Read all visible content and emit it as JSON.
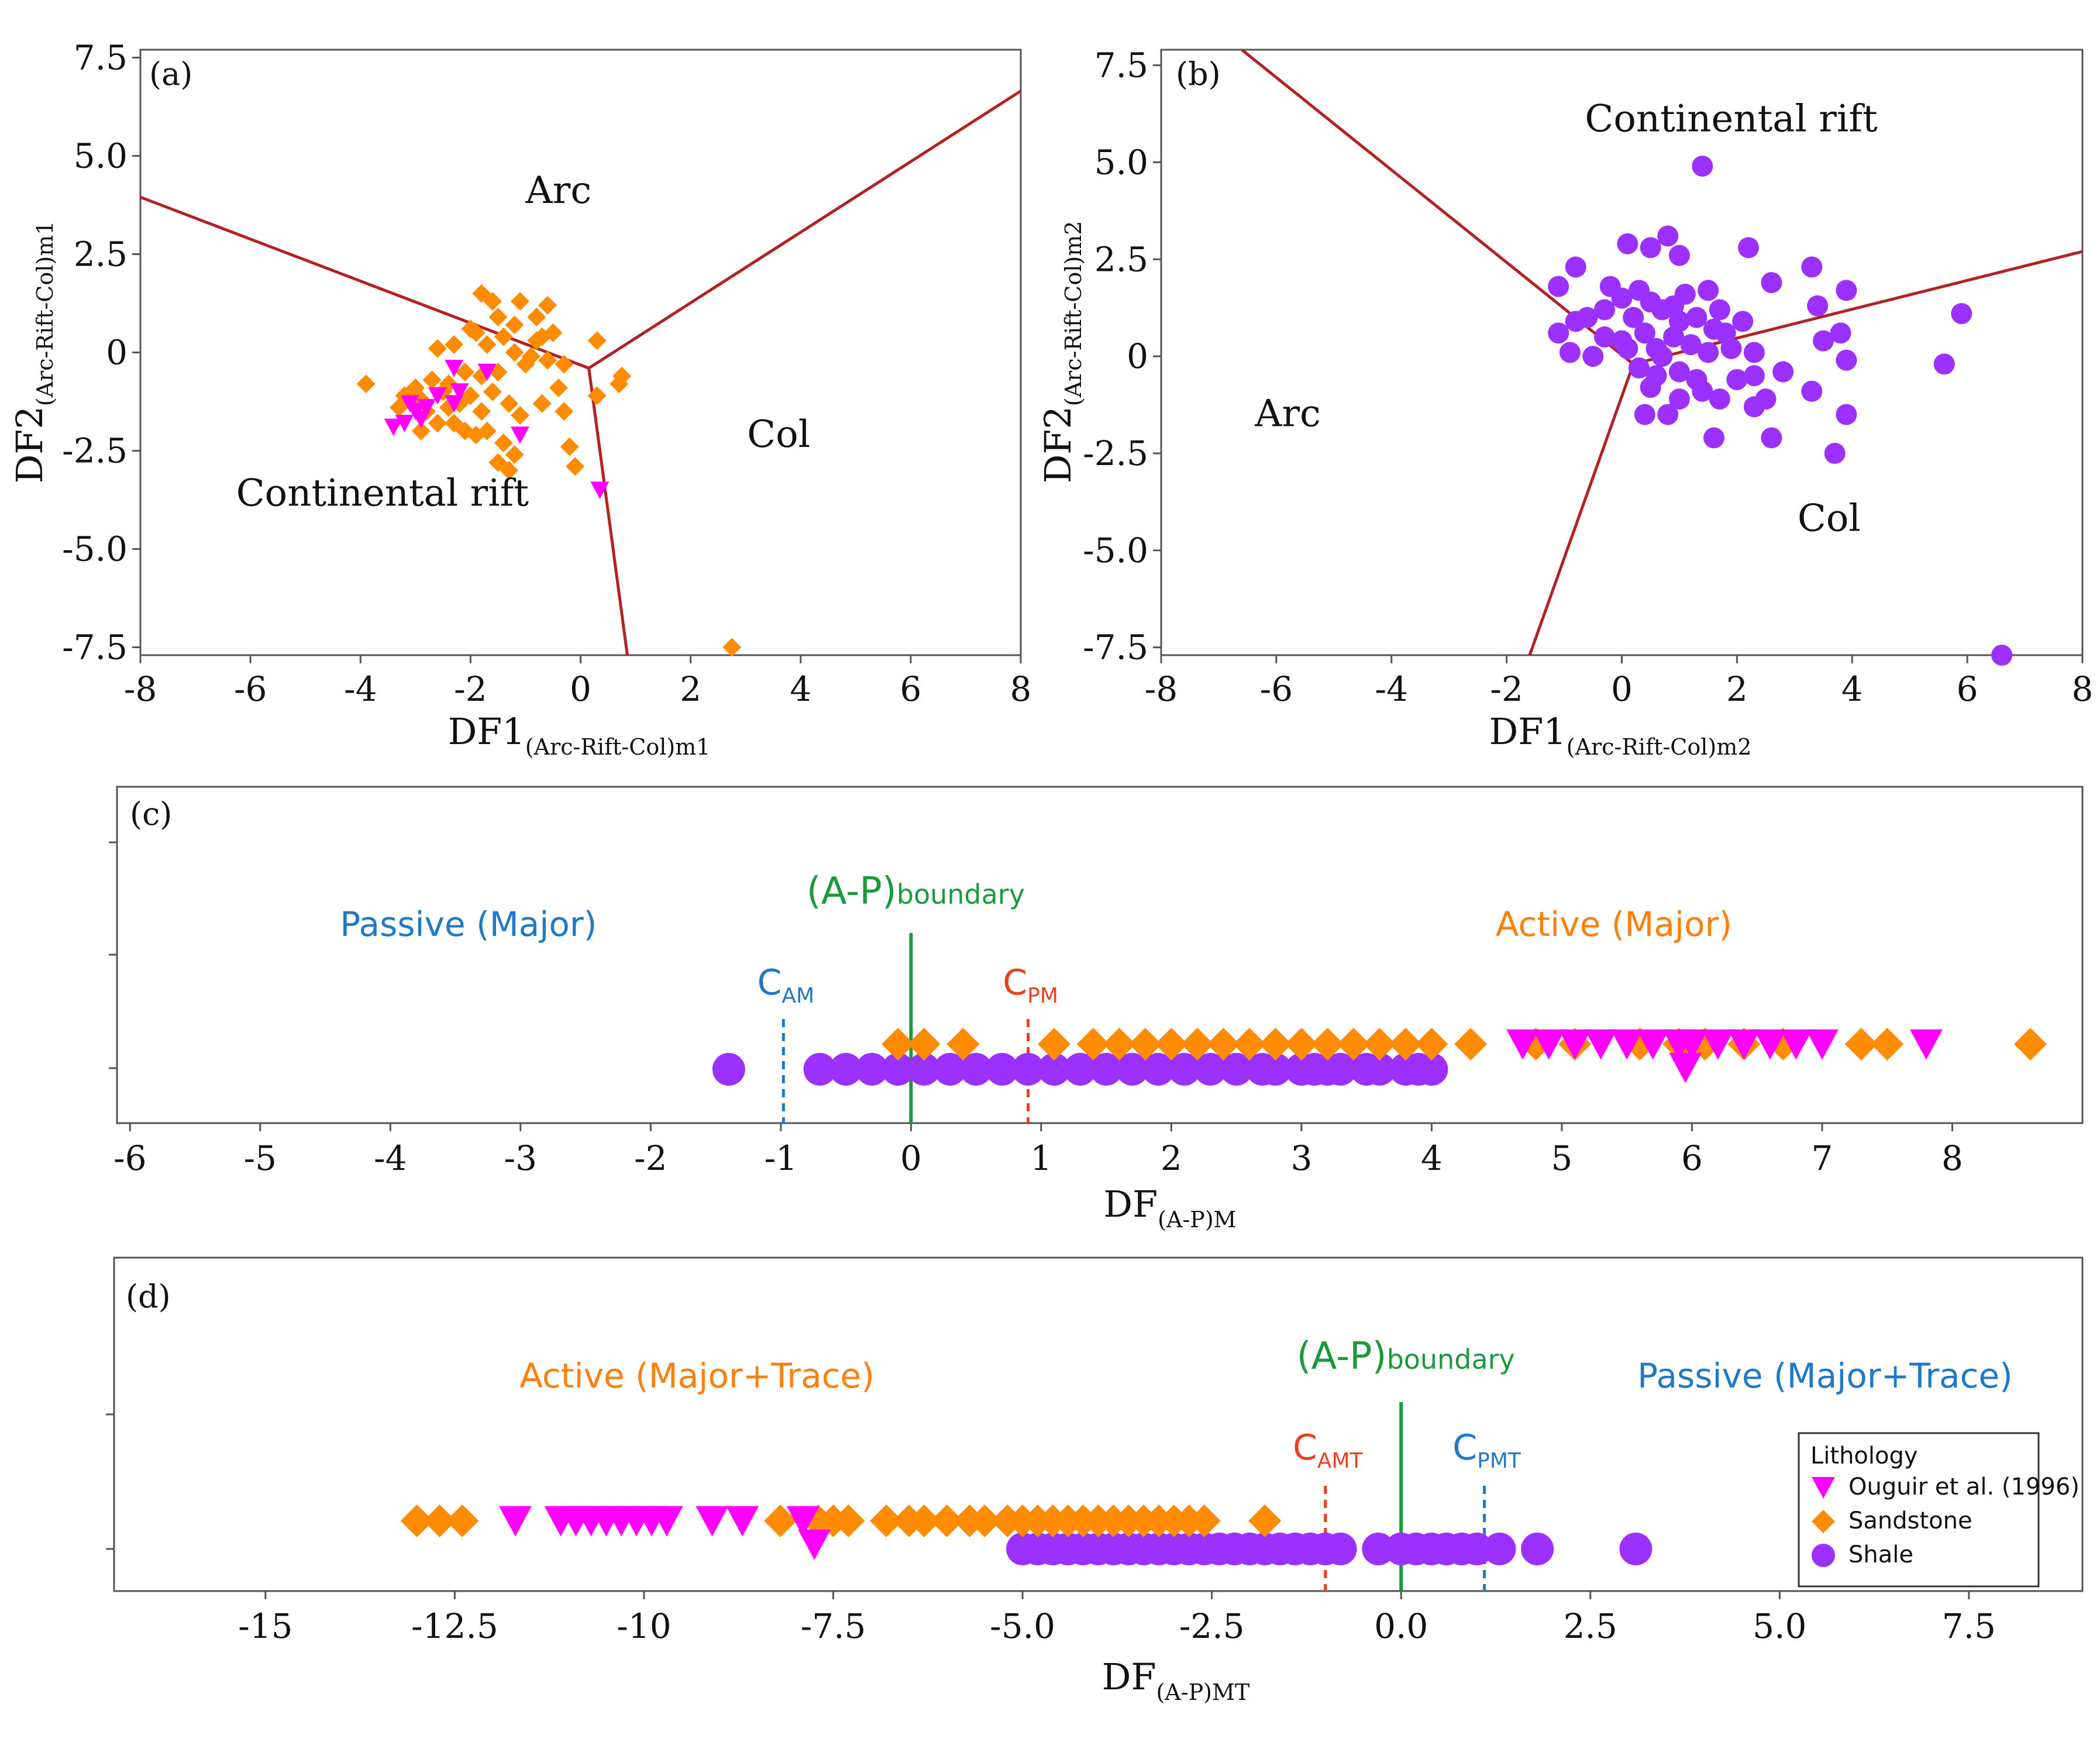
{
  "colors": {
    "boundary_line": "#b22222",
    "ouguir": "#ff00ff",
    "sandstone": "#ff8c00",
    "shale": "#9b30ff",
    "ap_boundary": "#1a9a3a",
    "passive_text": "#1f78c8",
    "active_text": "#ff7f0e",
    "c_active_text": "#e8401c"
  },
  "legend": {
    "title": "Lithology",
    "items": [
      {
        "label": "Ouguir et al. (1996)",
        "marker": "triangle-down",
        "color": "#ff00ff"
      },
      {
        "label": "Sandstone",
        "marker": "diamond",
        "color": "#ff8c00"
      },
      {
        "label": "Shale",
        "marker": "circle",
        "color": "#9b30ff"
      }
    ]
  },
  "chart_data": [
    {
      "panel": "(a)",
      "type": "scatter",
      "xlabel": {
        "main": "DF1",
        "sub": "(Arc-Rift-Col)m1"
      },
      "ylabel": {
        "main": "DF2",
        "sub": "(Arc-Rift-Col)m1"
      },
      "xlim": [
        -8,
        8
      ],
      "ylim": [
        -7.7,
        7.7
      ],
      "xticks": [
        "-8",
        "-6",
        "-4",
        "-2",
        "0",
        "2",
        "4",
        "6",
        "8"
      ],
      "yticks": [
        {
          "v": 7.5,
          "t": "7.5"
        },
        {
          "v": 5,
          "t": "5.0"
        },
        {
          "v": 2.5,
          "t": "2.5"
        },
        {
          "v": 0,
          "t": "0"
        },
        {
          "v": -2.5,
          "t": "-2.5"
        },
        {
          "v": -5,
          "t": "-5.0"
        },
        {
          "v": -7.5,
          "t": "-7.5"
        }
      ],
      "region_labels": [
        {
          "text": "Arc",
          "x": -0.4,
          "y": 3.8
        },
        {
          "text": "Col",
          "x": 3.6,
          "y": -2.4
        },
        {
          "text": "Continental rift",
          "x": -3.6,
          "y": -3.9
        }
      ],
      "boundaries": {
        "center": [
          0.15,
          -0.4
        ],
        "ends": [
          [
            -8,
            3.95
          ],
          [
            8,
            6.65
          ],
          [
            0.85,
            -7.7
          ]
        ]
      },
      "series": [
        {
          "name": "Sandstone",
          "marker": "diamond",
          "points": [
            [
              -1.8,
              1.5
            ],
            [
              -1.6,
              1.3
            ],
            [
              -1.1,
              1.3
            ],
            [
              -2.0,
              0.6
            ],
            [
              -1.5,
              0.9
            ],
            [
              -1.2,
              0.7
            ],
            [
              -0.8,
              0.9
            ],
            [
              -0.6,
              1.2
            ],
            [
              -0.7,
              0.4
            ],
            [
              -1.4,
              0.4
            ],
            [
              -1.7,
              0.2
            ],
            [
              -2.3,
              0.2
            ],
            [
              -2.6,
              0.1
            ],
            [
              -1.2,
              0.0
            ],
            [
              -0.9,
              -0.1
            ],
            [
              -0.6,
              -0.2
            ],
            [
              -0.3,
              -0.3
            ],
            [
              0.3,
              0.3
            ],
            [
              0.75,
              -0.6
            ],
            [
              0.7,
              -0.8
            ],
            [
              -1.0,
              -0.3
            ],
            [
              -1.5,
              -0.5
            ],
            [
              -1.8,
              -0.6
            ],
            [
              -2.1,
              -0.5
            ],
            [
              -2.4,
              -0.8
            ],
            [
              -2.7,
              -0.7
            ],
            [
              -3.0,
              -0.9
            ],
            [
              -3.2,
              -1.1
            ],
            [
              -2.9,
              -1.2
            ],
            [
              -2.5,
              -1.0
            ],
            [
              -2.2,
              -1.3
            ],
            [
              -2.0,
              -1.1
            ],
            [
              -1.6,
              -1.0
            ],
            [
              -1.3,
              -1.3
            ],
            [
              -1.1,
              -1.6
            ],
            [
              -0.7,
              -1.3
            ],
            [
              -0.3,
              -1.5
            ],
            [
              -2.8,
              -1.5
            ],
            [
              -2.6,
              -1.8
            ],
            [
              -2.3,
              -1.8
            ],
            [
              -2.1,
              -2.0
            ],
            [
              -1.9,
              -2.1
            ],
            [
              -1.7,
              -2.0
            ],
            [
              -1.4,
              -2.3
            ],
            [
              -1.2,
              -2.6
            ],
            [
              -1.3,
              -3.0
            ],
            [
              -1.5,
              -2.8
            ],
            [
              -0.2,
              -2.4
            ],
            [
              -0.1,
              -2.9
            ],
            [
              -3.9,
              -0.8
            ],
            [
              -3.3,
              -1.4
            ],
            [
              -2.9,
              -2.0
            ],
            [
              -0.4,
              -0.9
            ],
            [
              0.3,
              -1.1
            ],
            [
              2.75,
              -7.5
            ],
            [
              -1.9,
              0.5
            ],
            [
              -0.8,
              0.3
            ],
            [
              -0.5,
              0.5
            ],
            [
              -2.4,
              -1.4
            ],
            [
              -1.8,
              -1.5
            ]
          ]
        },
        {
          "name": "Ouguir et al. (1996)",
          "marker": "triangle",
          "points": [
            [
              -3.4,
              -1.9
            ],
            [
              -3.2,
              -1.8
            ],
            [
              -3.0,
              -1.5
            ],
            [
              -3.1,
              -1.3
            ],
            [
              -2.8,
              -1.4
            ],
            [
              -2.9,
              -1.7
            ],
            [
              -2.6,
              -1.1
            ],
            [
              -2.3,
              -1.3
            ],
            [
              -2.2,
              -1.0
            ],
            [
              -1.7,
              -0.5
            ],
            [
              -2.3,
              -0.4
            ],
            [
              -1.1,
              -2.1
            ],
            [
              0.35,
              -3.5
            ]
          ]
        }
      ]
    },
    {
      "panel": "(b)",
      "type": "scatter",
      "xlabel": {
        "main": "DF1",
        "sub": "(Arc-Rift-Col)m2"
      },
      "ylabel": {
        "main": "DF2",
        "sub": "(Arc-Rift-Col)m2"
      },
      "xlim": [
        -8,
        8
      ],
      "ylim": [
        -7.7,
        7.9
      ],
      "xticks": [
        "-8",
        "-6",
        "-4",
        "-2",
        "0",
        "2",
        "4",
        "6",
        "8"
      ],
      "yticks": [
        {
          "v": 7.5,
          "t": "7.5"
        },
        {
          "v": 5,
          "t": "5.0"
        },
        {
          "v": 2.5,
          "t": "2.5"
        },
        {
          "v": 0,
          "t": "0"
        },
        {
          "v": -2.5,
          "t": "-2.5"
        },
        {
          "v": -5,
          "t": "-5.0"
        },
        {
          "v": -7.5,
          "t": "-7.5"
        }
      ],
      "region_labels": [
        {
          "text": "Continental rift",
          "x": 1.9,
          "y": 5.8
        },
        {
          "text": "Arc",
          "x": -5.8,
          "y": -1.8
        },
        {
          "text": "Col",
          "x": 3.6,
          "y": -4.5
        }
      ],
      "boundaries": {
        "center": [
          0.2,
          -0.2
        ],
        "ends": [
          [
            -6.6,
            7.9
          ],
          [
            8,
            2.7
          ],
          [
            -1.6,
            -7.7
          ]
        ]
      },
      "series": [
        {
          "name": "Shale",
          "marker": "circle",
          "points": [
            [
              1.4,
              4.9
            ],
            [
              2.2,
              2.8
            ],
            [
              3.3,
              2.3
            ],
            [
              0.1,
              2.9
            ],
            [
              0.5,
              2.8
            ],
            [
              0.8,
              3.1
            ],
            [
              1.0,
              2.6
            ],
            [
              -0.8,
              2.3
            ],
            [
              -1.1,
              1.8
            ],
            [
              -0.2,
              1.8
            ],
            [
              0.3,
              1.7
            ],
            [
              1.1,
              1.6
            ],
            [
              1.5,
              1.7
            ],
            [
              2.6,
              1.9
            ],
            [
              3.4,
              1.3
            ],
            [
              3.9,
              1.7
            ],
            [
              5.9,
              1.1
            ],
            [
              3.8,
              0.6
            ],
            [
              3.5,
              0.4
            ],
            [
              3.9,
              -0.1
            ],
            [
              5.6,
              -0.2
            ],
            [
              3.3,
              -0.9
            ],
            [
              2.8,
              -0.4
            ],
            [
              2.3,
              -0.5
            ],
            [
              2.0,
              -0.6
            ],
            [
              2.5,
              -1.1
            ],
            [
              2.3,
              -1.3
            ],
            [
              1.7,
              -1.1
            ],
            [
              1.4,
              -0.9
            ],
            [
              1.0,
              -1.1
            ],
            [
              0.5,
              -0.8
            ],
            [
              0.8,
              -1.5
            ],
            [
              0.4,
              -1.5
            ],
            [
              1.6,
              -2.1
            ],
            [
              2.6,
              -2.1
            ],
            [
              3.9,
              -1.5
            ],
            [
              3.7,
              -2.5
            ],
            [
              6.6,
              -7.7
            ],
            [
              -1.1,
              0.6
            ],
            [
              -0.9,
              0.1
            ],
            [
              -0.5,
              0.0
            ],
            [
              0.0,
              0.4
            ],
            [
              0.4,
              0.6
            ],
            [
              0.6,
              0.2
            ],
            [
              0.9,
              0.5
            ],
            [
              1.2,
              0.3
            ],
            [
              1.5,
              0.1
            ],
            [
              1.8,
              0.6
            ],
            [
              2.1,
              0.9
            ],
            [
              1.3,
              1.0
            ],
            [
              0.7,
              1.2
            ],
            [
              0.2,
              1.0
            ],
            [
              -0.3,
              1.2
            ],
            [
              -0.6,
              1.0
            ],
            [
              -0.8,
              0.9
            ],
            [
              0.0,
              1.5
            ],
            [
              0.5,
              1.4
            ],
            [
              0.9,
              1.3
            ],
            [
              1.7,
              1.2
            ],
            [
              1.9,
              0.2
            ],
            [
              0.3,
              -0.3
            ],
            [
              1.0,
              -0.4
            ],
            [
              1.3,
              -0.6
            ],
            [
              0.6,
              -0.5
            ],
            [
              -0.3,
              0.5
            ],
            [
              0.1,
              0.2
            ],
            [
              1.0,
              0.9
            ],
            [
              2.3,
              0.1
            ],
            [
              1.6,
              0.7
            ],
            [
              0.7,
              0.0
            ]
          ]
        }
      ]
    },
    {
      "panel": "(c)",
      "type": "scatter",
      "xlabel": {
        "main": "DF",
        "sub": "(A-P)M"
      },
      "xlim": [
        -6.1,
        9.0
      ],
      "xticks": [
        "-6",
        "-5",
        "-4",
        "-3",
        "-2",
        "-1",
        "0",
        "1",
        "2",
        "3",
        "4",
        "5",
        "6",
        "7",
        "8"
      ],
      "boundary": {
        "label_main": "(A-P)",
        "label_sub": "boundary",
        "x": 0
      },
      "cutoffs": [
        {
          "main": "C",
          "sub": "AM",
          "x": -0.98,
          "color": "#1f78c8"
        },
        {
          "main": "C",
          "sub": "PM",
          "x": 0.9,
          "color": "#e8401c"
        }
      ],
      "zone_labels": [
        {
          "text": "Passive (Major)",
          "x": -3.4,
          "color": "#1f78c8"
        },
        {
          "text": "Active (Major)",
          "x": 5.4,
          "color": "#ff7f0e"
        }
      ],
      "series": [
        {
          "name": "Shale",
          "marker": "circle",
          "row": 0,
          "x": [
            -1.4,
            -0.7,
            -0.5,
            -0.3,
            -0.1,
            0.1,
            0.3,
            0.5,
            0.7,
            0.9,
            1.1,
            1.3,
            1.5,
            1.7,
            1.9,
            2.1,
            2.3,
            2.5,
            2.7,
            2.8,
            3.0,
            3.1,
            3.2,
            3.3,
            3.5,
            3.6,
            3.8,
            3.9,
            4.0
          ]
        },
        {
          "name": "Sandstone",
          "marker": "diamond",
          "row": 1,
          "x": [
            -0.1,
            0.1,
            0.4,
            1.1,
            1.4,
            1.6,
            1.8,
            2.0,
            2.2,
            2.4,
            2.6,
            2.8,
            3.0,
            3.2,
            3.4,
            3.6,
            3.8,
            4.0,
            4.3,
            4.8,
            5.1,
            5.6,
            5.9,
            6.1,
            6.4,
            6.7,
            7.3,
            7.5,
            8.6
          ]
        },
        {
          "name": "Ouguir et al. (1996)",
          "marker": "triangle",
          "row": 1,
          "x": [
            4.7,
            4.9,
            5.1,
            5.3,
            5.5,
            5.7,
            5.9,
            6.0,
            6.2,
            6.4,
            6.6,
            6.8,
            7.0,
            7.8,
            5.95
          ]
        }
      ]
    },
    {
      "panel": "(d)",
      "type": "scatter",
      "xlabel": {
        "main": "DF",
        "sub": "(A-P)MT"
      },
      "xlim": [
        -17.0,
        9.0
      ],
      "xticks": [
        {
          "v": -15,
          "t": "-15"
        },
        {
          "v": -12.5,
          "t": "-12.5"
        },
        {
          "v": -10,
          "t": "-10"
        },
        {
          "v": -7.5,
          "t": "-7.5"
        },
        {
          "v": -5,
          "t": "-5.0"
        },
        {
          "v": -2.5,
          "t": "-2.5"
        },
        {
          "v": 0,
          "t": "0.0"
        },
        {
          "v": 2.5,
          "t": "2.5"
        },
        {
          "v": 5,
          "t": "5.0"
        },
        {
          "v": 7.5,
          "t": "7.5"
        }
      ],
      "boundary": {
        "label_main": "(A-P)",
        "label_sub": "boundary",
        "x": 0
      },
      "cutoffs": [
        {
          "main": "C",
          "sub": "AMT",
          "x": -1.0,
          "color": "#e8401c"
        },
        {
          "main": "C",
          "sub": "PMT",
          "x": 1.1,
          "color": "#1f78c8"
        }
      ],
      "zone_labels": [
        {
          "text": "Active (Major+Trace)",
          "x": -9.3,
          "color": "#ff7f0e"
        },
        {
          "text": "Passive (Major+Trace)",
          "x": 5.6,
          "color": "#1f78c8"
        }
      ],
      "series": [
        {
          "name": "Shale",
          "marker": "circle",
          "row": 0,
          "x": [
            -5.0,
            -4.8,
            -4.6,
            -4.4,
            -4.2,
            -4.0,
            -3.8,
            -3.6,
            -3.4,
            -3.2,
            -3.0,
            -2.8,
            -2.6,
            -2.4,
            -2.2,
            -2.0,
            -1.8,
            -1.6,
            -1.4,
            -1.2,
            -1.0,
            -0.8,
            -0.3,
            0.0,
            0.2,
            0.4,
            0.6,
            0.8,
            1.0,
            1.3,
            1.8,
            3.1
          ]
        },
        {
          "name": "Sandstone",
          "marker": "diamond",
          "row": 1,
          "x": [
            -13.0,
            -12.7,
            -12.4,
            -8.2,
            -7.7,
            -7.5,
            -7.3,
            -6.8,
            -6.5,
            -6.3,
            -6.0,
            -5.7,
            -5.5,
            -5.2,
            -5.0,
            -4.8,
            -4.6,
            -4.4,
            -4.2,
            -4.0,
            -3.8,
            -3.6,
            -3.4,
            -3.2,
            -3.0,
            -2.8,
            -2.6,
            -1.8
          ]
        },
        {
          "name": "Ouguir et al. (1996)",
          "marker": "triangle",
          "row": 1,
          "x": [
            -11.7,
            -11.1,
            -10.9,
            -10.7,
            -10.5,
            -10.3,
            -10.1,
            -9.9,
            -9.7,
            -9.1,
            -8.7,
            -7.9,
            -7.75
          ]
        }
      ]
    }
  ]
}
